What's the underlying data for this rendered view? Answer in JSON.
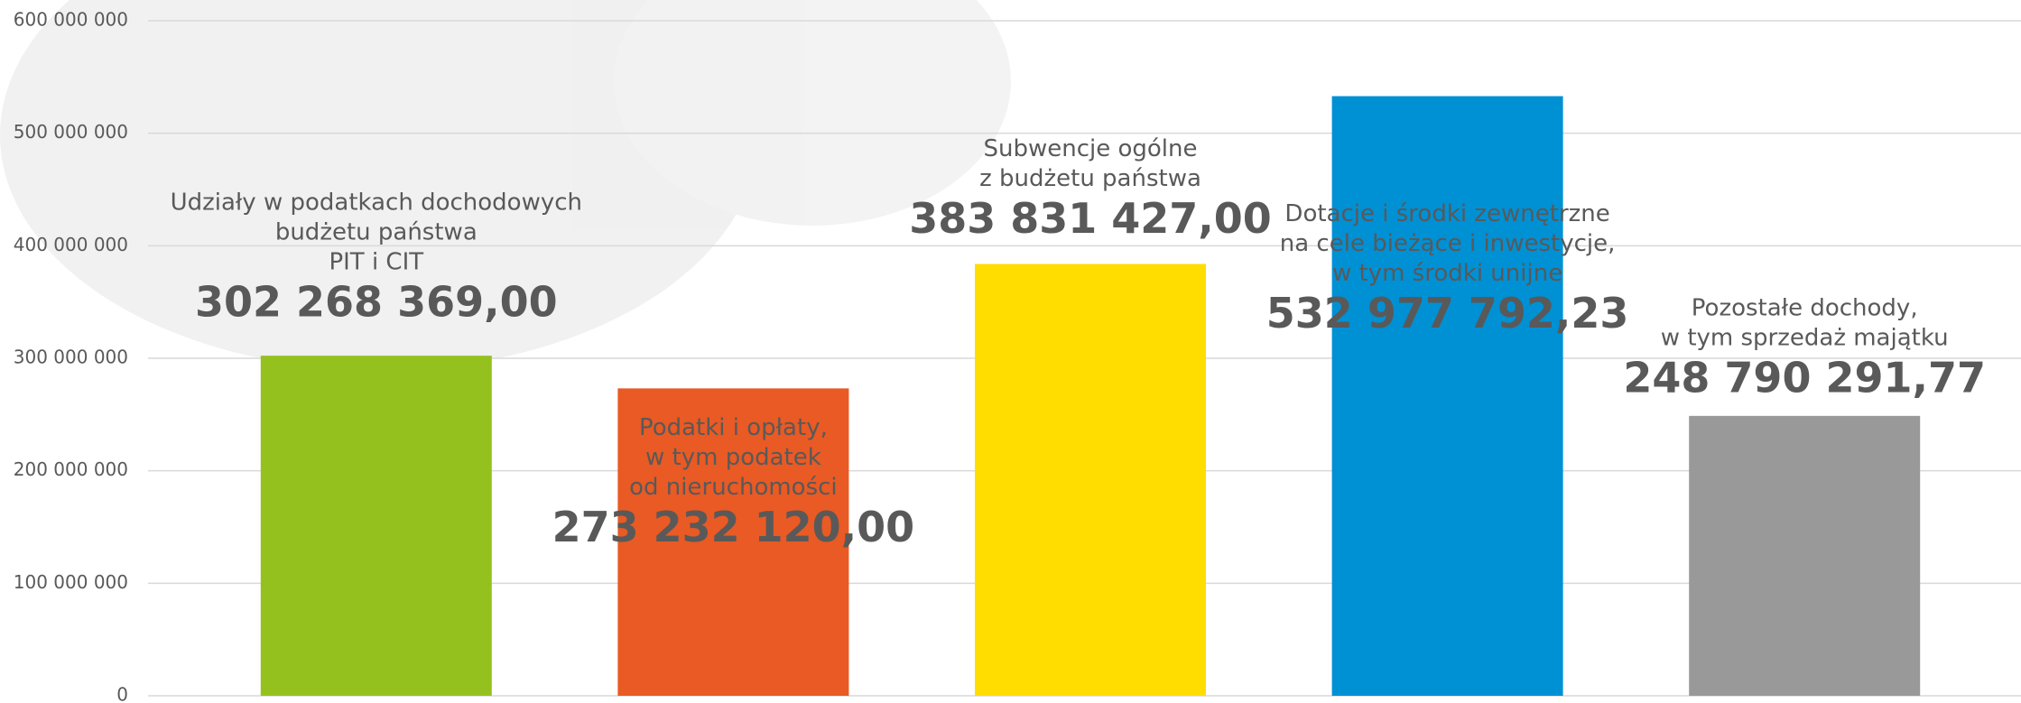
{
  "chart_data": {
    "type": "bar",
    "categories": [
      [
        "Udziały w podatkach dochodowych",
        "budżetu państwa",
        "PIT i CIT"
      ],
      [
        "Podatki i opłaty,",
        "w tym podatek",
        "od nieruchomości"
      ],
      [
        "Subwencje  ogólne",
        "z budżetu państwa"
      ],
      [
        "Dotacje i środki zewnętrzne",
        "na cele bieżące  i inwestycje,",
        "w tym środki unijne"
      ],
      [
        "Pozostałe dochody,",
        "w tym sprzedaż majątku"
      ]
    ],
    "values": [
      302268369.0,
      273232120.0,
      383831427.0,
      532977792.23,
      248790291.77
    ],
    "value_labels": [
      "302 268 369,00",
      "273 232 120,00",
      "383 831 427,00",
      "532 977 792,23",
      "248 790 291,77"
    ],
    "colors": [
      "#95c11f",
      "#e95a24",
      "#ffdd00",
      "#0090d4",
      "#999999"
    ],
    "ylim": [
      0,
      600000000
    ],
    "yticks": [
      {
        "value": 0,
        "label": "0"
      },
      {
        "value": 100000000,
        "label": "100 000 000"
      },
      {
        "value": 200000000,
        "label": "200 000 000"
      },
      {
        "value": 300000000,
        "label": "300 000 000"
      },
      {
        "value": 400000000,
        "label": "400 000 000"
      },
      {
        "value": 500000000,
        "label": "500 000 000"
      },
      {
        "value": 600000000,
        "label": "600 000 000"
      }
    ],
    "grid": true
  }
}
